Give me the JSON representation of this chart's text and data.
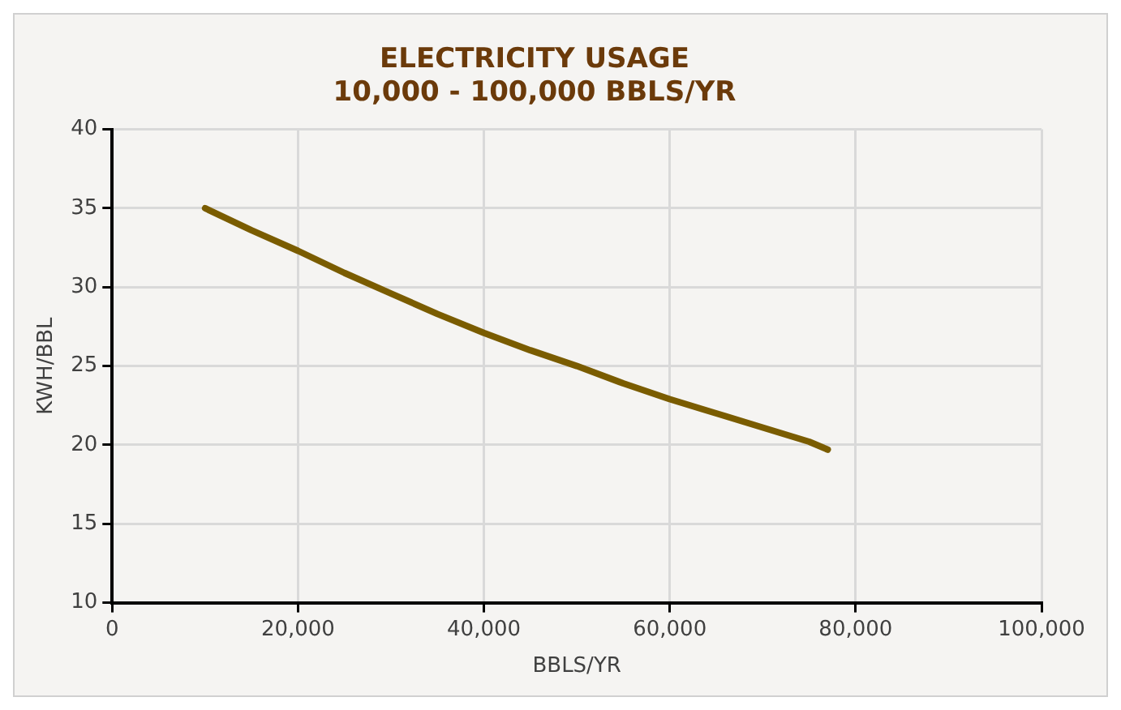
{
  "chart_data": {
    "type": "line",
    "title": "ELECTRICITY USAGE\n10,000 - 100,000 BBLS/YR",
    "xlabel": "BBLS/YR",
    "ylabel": "KWH/BBL",
    "x": [
      10000,
      15000,
      20000,
      25000,
      30000,
      35000,
      40000,
      45000,
      50000,
      55000,
      60000,
      65000,
      70000,
      75000,
      77000
    ],
    "series": [
      {
        "color": "#7a5c00",
        "values": [
          35.0,
          33.6,
          32.3,
          30.9,
          29.6,
          28.3,
          27.1,
          26.0,
          25.0,
          23.9,
          22.9,
          22.0,
          21.1,
          20.2,
          19.7
        ]
      }
    ],
    "xlim": [
      0,
      100000
    ],
    "xticks": [
      0,
      {
        "value": 20000,
        "label": "20,000"
      },
      {
        "value": 40000,
        "label": "40,000"
      },
      {
        "value": 60000,
        "label": "60,000"
      },
      {
        "value": 80000,
        "label": "80,000"
      },
      {
        "value": 100000,
        "label": "100,000"
      }
    ],
    "ylim": [
      10,
      40
    ],
    "yticks": [
      10,
      15,
      20,
      25,
      30,
      35,
      40
    ],
    "grid": true,
    "legend": false,
    "marker": "none",
    "line_style": "solid"
  }
}
